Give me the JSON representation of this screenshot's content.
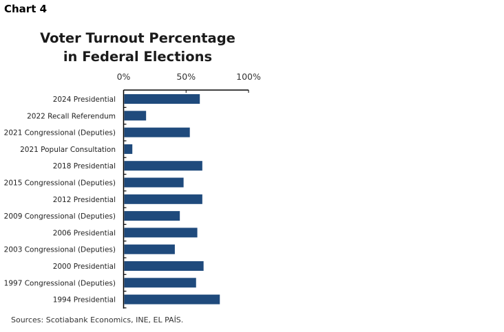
{
  "header": {
    "chart_label": "Chart 4"
  },
  "footer": {
    "source": "Sources: Scotiabank Economics, INE, EL PAÍS."
  },
  "chart_data": {
    "type": "bar",
    "orientation": "horizontal",
    "title": "Voter Turnout Percentage in Federal Elections",
    "title_lines": [
      "Voter Turnout Percentage",
      "in Federal Elections"
    ],
    "xlabel": "",
    "ylabel": "",
    "xlim": [
      0,
      100
    ],
    "x_ticks": [
      "0%",
      "50%",
      "100%"
    ],
    "x_tick_values": [
      0,
      50,
      100
    ],
    "x_axis_position": "top",
    "grid": false,
    "bar_color": "#1f4a7c",
    "categories": [
      "2024 Presidential",
      "2022 Recall Referendum",
      "2021 Congressional (Deputies)",
      "2021 Popular Consultation",
      "2018 Presidential",
      "2015 Congressional (Deputies)",
      "2012 Presidential",
      "2009 Congressional (Deputies)",
      "2006 Presidential",
      "2003 Congressional (Deputies)",
      "2000 Presidential",
      "1997 Congressional (Deputies)",
      "1994 Presidential"
    ],
    "values": [
      61,
      18,
      53,
      7,
      63,
      48,
      63,
      45,
      59,
      41,
      64,
      58,
      77
    ]
  }
}
